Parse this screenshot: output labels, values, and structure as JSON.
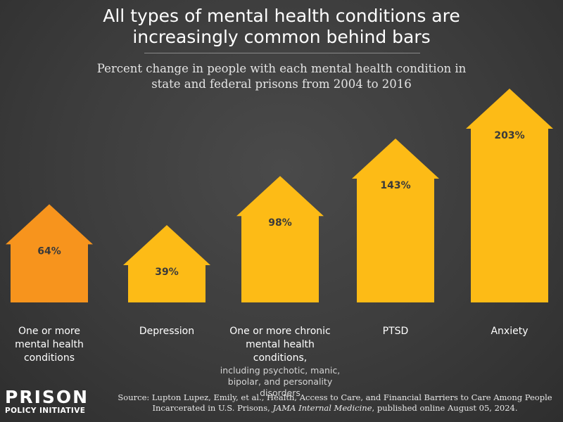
{
  "header": {
    "title": "All types of mental health conditions are\nincreasingly common behind bars",
    "subtitle": "Percent change in people with each mental health condition in\nstate and federal prisons from 2004 to 2016"
  },
  "chart_data": {
    "type": "bar",
    "style": "upward arrows",
    "categories": [
      "One or more mental health conditions",
      "Depression",
      "One or more chronic mental health conditions, including psychotic, manic, bipolar, and personality disorders",
      "PTSD",
      "Anxiety"
    ],
    "values": [
      64,
      39,
      98,
      143,
      203
    ],
    "value_labels": [
      "64%",
      "39%",
      "98%",
      "143%",
      "203%"
    ],
    "unit": "%",
    "colors": [
      "#f7941d",
      "#fdbb16",
      "#fdbb16",
      "#fdbb16",
      "#fdbb16"
    ],
    "ylim": [
      0,
      203
    ],
    "grid": false,
    "legend": "none"
  },
  "labels": [
    {
      "main": "One or more\nmental health\nconditions",
      "note": ""
    },
    {
      "main": "Depression",
      "note": ""
    },
    {
      "main": "One or more chronic\nmental health conditions,",
      "note": "including psychotic, manic,\nbipolar, and personality\ndisorders"
    },
    {
      "main": "PTSD",
      "note": ""
    },
    {
      "main": "Anxiety",
      "note": ""
    }
  ],
  "footer": {
    "source_prefix": "Source: Lupton Lupez, Emily, et al., Health, Access to Care, and Financial Barriers to Care Among People Incarcerated in U.S. Prisons, ",
    "journal": "JAMA Internal Medicine",
    "source_suffix": ", published online August 05, 2024.",
    "logo_top": "PRISON",
    "logo_bottom": "POLICY INITIATIVE"
  }
}
